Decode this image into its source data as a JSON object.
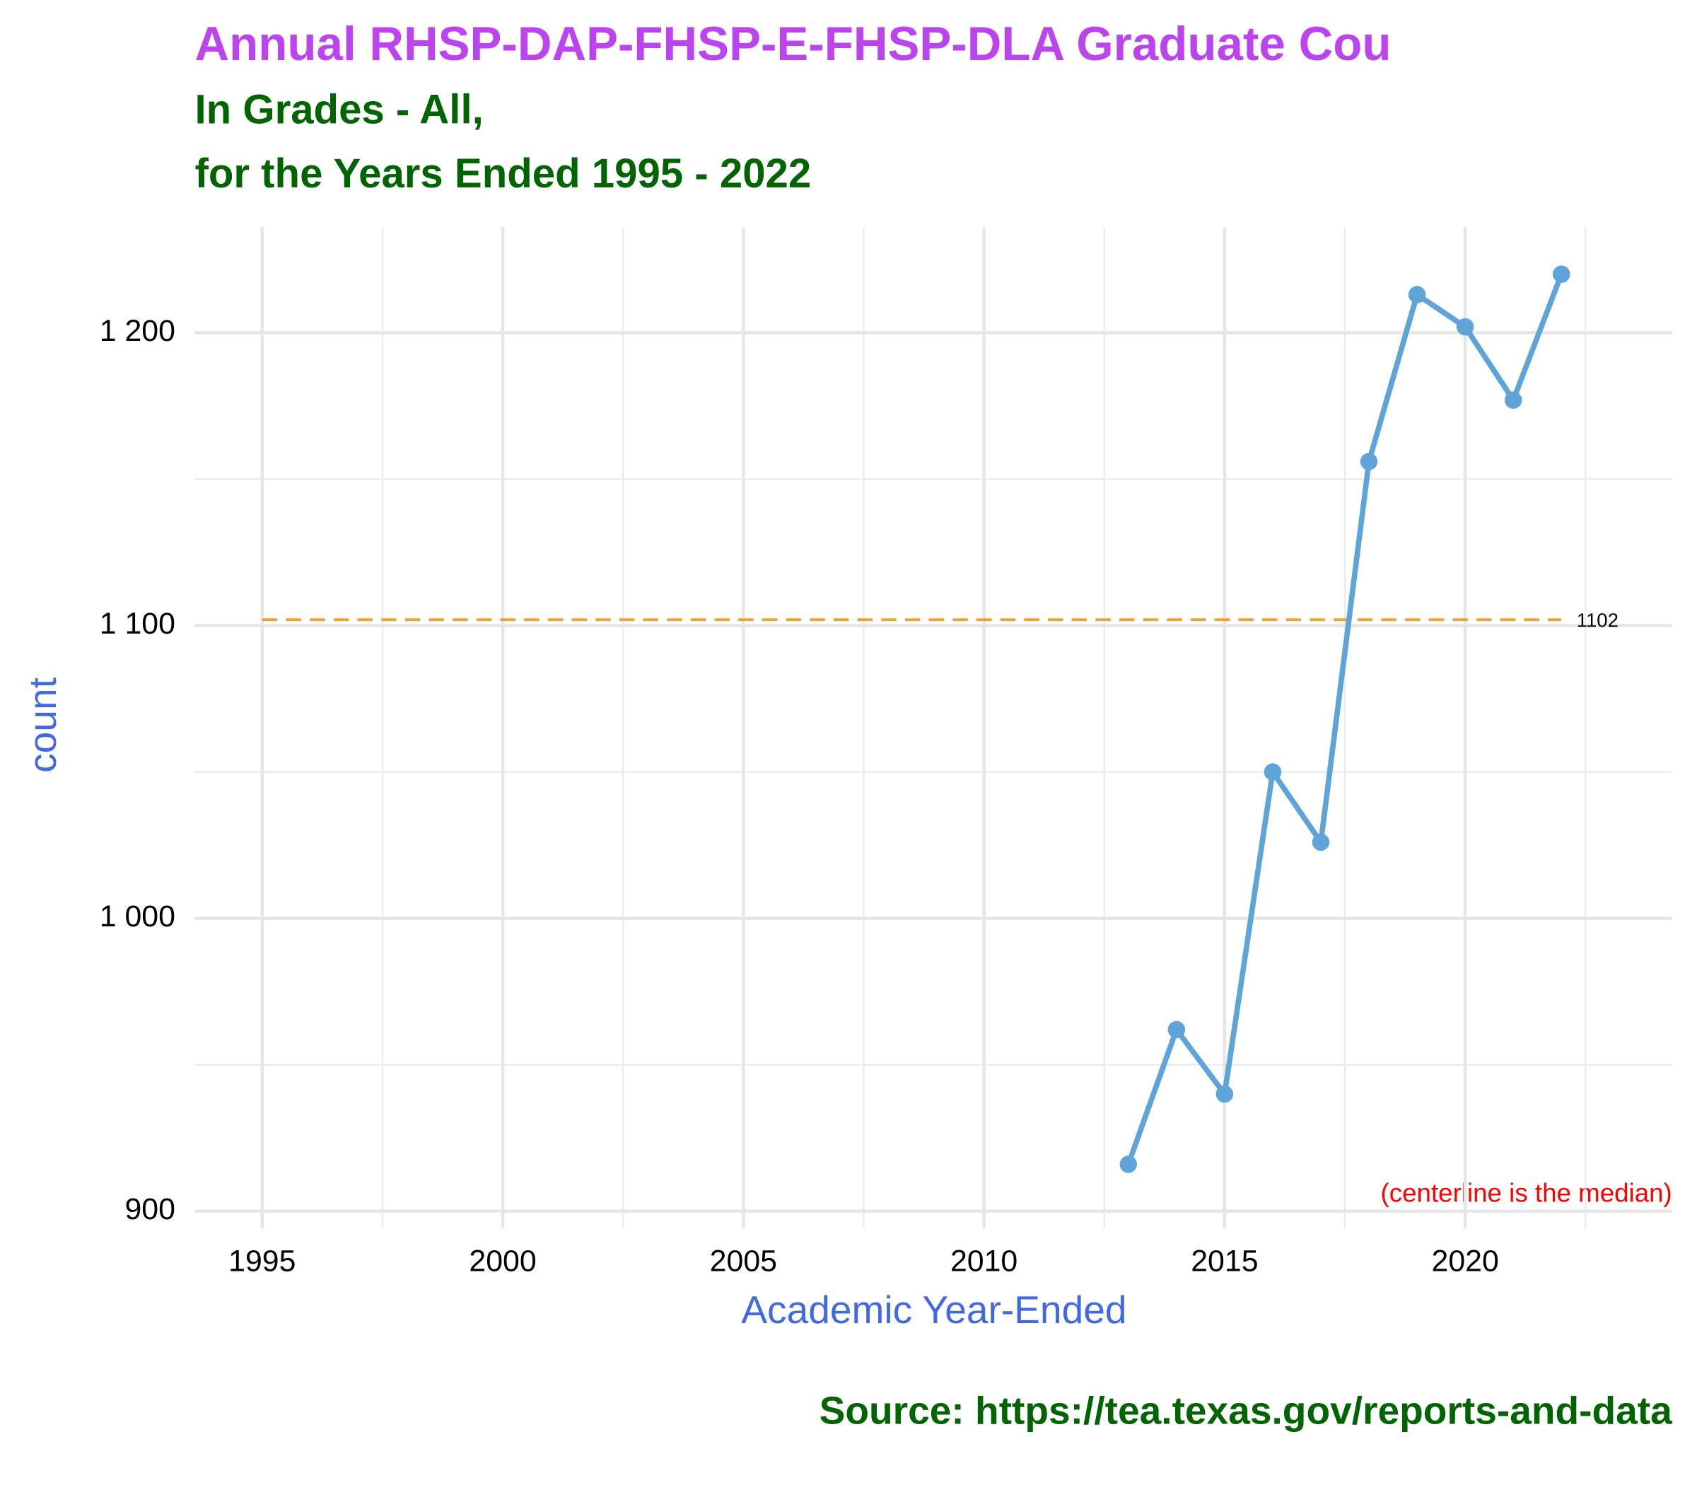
{
  "chart_data": {
    "type": "line",
    "title": "Annual RHSP-DAP-FHSP-E-FHSP-DLA Graduate Cou",
    "subtitle": [
      "In Grades - All,",
      "for the Years Ended 1995 - 2022"
    ],
    "x_label": "Academic Year-Ended",
    "y_label": "count",
    "caption": "Source:  https://tea.texas.gov/reports-and-data",
    "annotation": "(centerline is the median)",
    "median": 1102,
    "median_color": "#f0a030",
    "x": [
      2013,
      2014,
      2015,
      2016,
      2017,
      2018,
      2019,
      2020,
      2021,
      2022
    ],
    "series": [
      {
        "name": "count",
        "color": "#5fa4d8",
        "values": [
          916,
          962,
          940,
          1050,
          1026,
          1156,
          1213,
          1202,
          1177,
          1220
        ]
      }
    ],
    "xlim": [
      1993.6,
      2024.3
    ],
    "xticks": [
      1995,
      2000,
      2005,
      2010,
      2015,
      2020
    ],
    "ylim": [
      900,
      1236
    ],
    "yticks": [
      900,
      {
        "value": 1000,
        "label": "1 000"
      },
      {
        "value": 1100,
        "label": "1 100"
      },
      {
        "value": 1200,
        "label": "1 200"
      }
    ],
    "grid": true
  }
}
